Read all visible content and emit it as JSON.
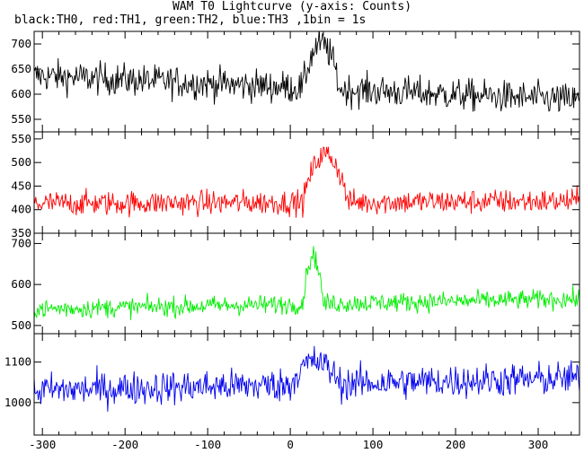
{
  "chart_data": {
    "type": "line",
    "title": "WAM T0 Lightcurve (y-axis: Counts)",
    "subtitle": "black:TH0, red:TH1, green:TH2, blue:TH3 ,1bin = 1s",
    "x_range": [
      -310,
      350
    ],
    "x_ticks": [
      -300,
      -200,
      -100,
      0,
      100,
      200,
      300
    ],
    "panels": [
      {
        "name": "TH0",
        "color": "#000000",
        "ylim": [
          525,
          725
        ],
        "y_ticks": [
          550,
          600,
          650,
          700
        ],
        "baseline_start": 637,
        "baseline_end": 588,
        "noise": 27,
        "burst": {
          "start": 15,
          "end": 60,
          "peak": 715
        }
      },
      {
        "name": "TH1",
        "color": "#ff0000",
        "ylim": [
          350,
          565
        ],
        "y_ticks": [
          350,
          400,
          450,
          500,
          550
        ],
        "baseline_start": 413,
        "baseline_end": 418,
        "noise": 22,
        "burst": {
          "start": 15,
          "end": 70,
          "peak": 535
        }
      },
      {
        "name": "TH2",
        "color": "#00ee00",
        "ylim": [
          480,
          725
        ],
        "y_ticks": [
          500,
          600,
          700
        ],
        "baseline_start": 540,
        "baseline_end": 565,
        "noise": 20,
        "burst": {
          "start": 15,
          "end": 40,
          "peak": 690
        }
      },
      {
        "name": "TH3",
        "color": "#0000ee",
        "ylim": [
          920,
          1170
        ],
        "y_ticks": [
          1000,
          1100
        ],
        "baseline_start": 1030,
        "baseline_end": 1060,
        "noise": 35,
        "burst": {
          "start": 0,
          "end": 60,
          "peak": 1110
        }
      }
    ]
  }
}
